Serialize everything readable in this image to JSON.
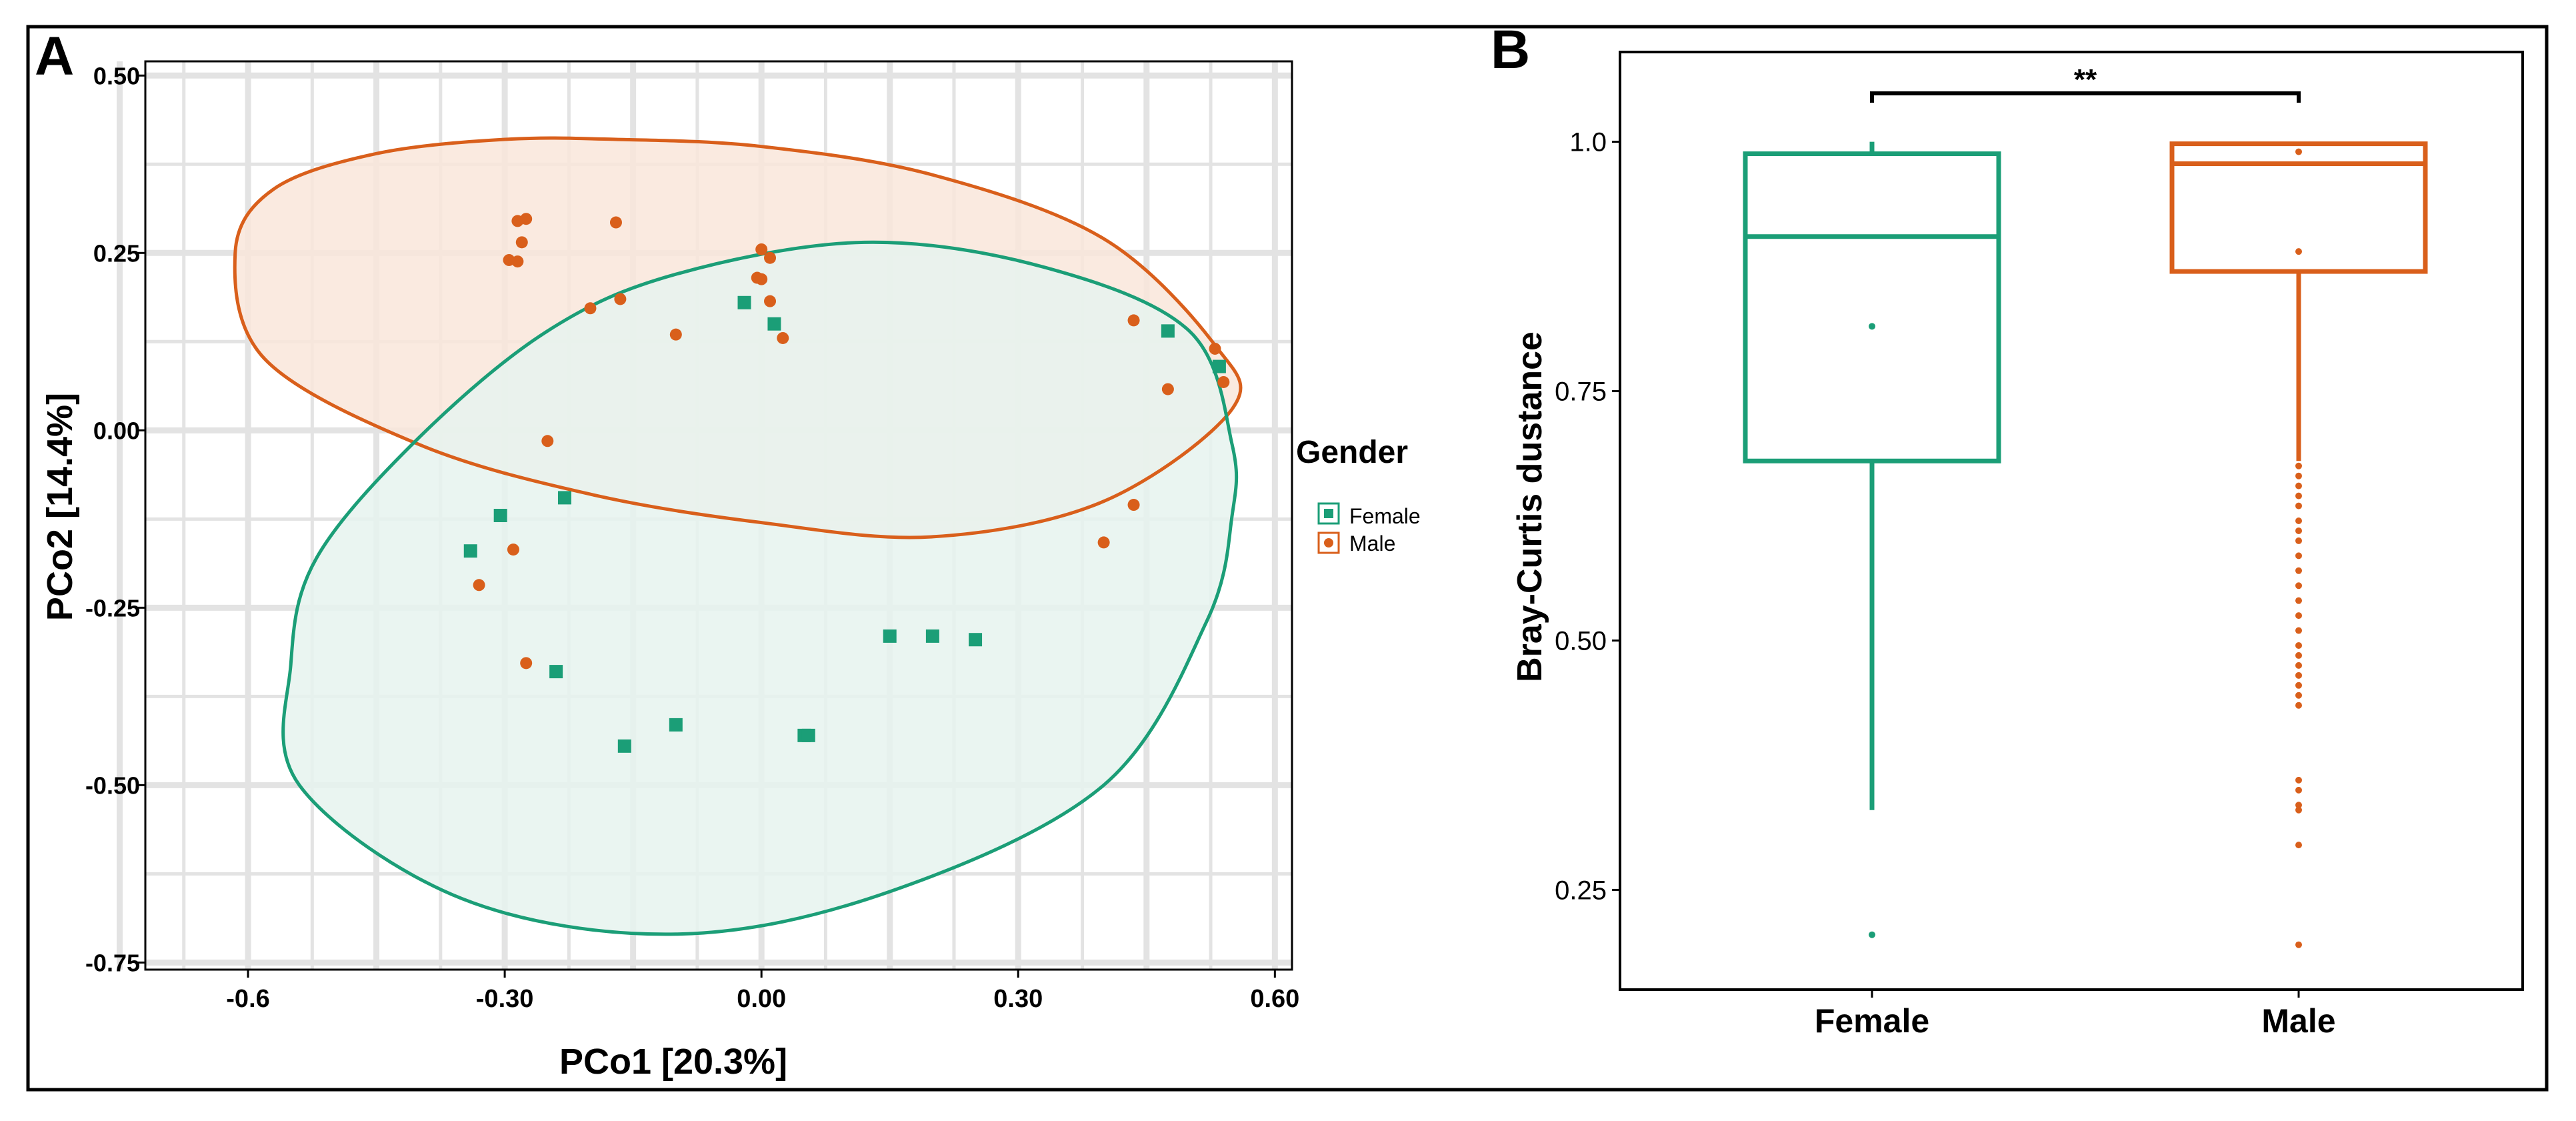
{
  "colors": {
    "female": "#1b9e77",
    "male": "#d95f1b",
    "female_fill": "#e6f3ee",
    "male_fill": "#f9e6da",
    "grid": "#e3e3e3",
    "axis": "#000000"
  },
  "chart_data": [
    {
      "panel": "A",
      "type": "scatter",
      "xlabel": "PCo1 [20.3%]",
      "ylabel": "PCo2 [14.4%]",
      "xlim": [
        -0.72,
        0.62
      ],
      "ylim": [
        -0.76,
        0.52
      ],
      "xticks": [
        -0.6,
        -0.3,
        0.0,
        0.3,
        0.6
      ],
      "xtick_labels": [
        "-0.6",
        "-0.30",
        "0.00",
        "0.30",
        "0.60"
      ],
      "yticks": [
        0.5,
        0.25,
        0.0,
        -0.25,
        -0.5,
        -0.75
      ],
      "ytick_labels": [
        "0.50",
        "0.25",
        "0.00",
        "-0.25",
        "-0.50",
        "-0.75"
      ],
      "legend": {
        "title": "Gender",
        "position": "right",
        "entries": [
          {
            "label": "Female",
            "marker": "square",
            "series": "female"
          },
          {
            "label": "Male",
            "marker": "circle",
            "series": "male"
          }
        ]
      },
      "ellipses": [
        {
          "series": "male",
          "points": [
            [
              -0.17,
              0.41
            ],
            [
              0.0,
              0.4
            ],
            [
              0.2,
              0.36
            ],
            [
              0.4,
              0.27
            ],
            [
              0.53,
              0.12
            ],
            [
              0.55,
              0.03
            ],
            [
              0.4,
              -0.1
            ],
            [
              0.2,
              -0.15
            ],
            [
              0.0,
              -0.13
            ],
            [
              -0.2,
              -0.09
            ],
            [
              -0.4,
              -0.02
            ],
            [
              -0.58,
              0.1
            ],
            [
              -0.615,
              0.25
            ],
            [
              -0.57,
              0.34
            ],
            [
              -0.45,
              0.39
            ],
            [
              -0.3,
              0.41
            ]
          ]
        },
        {
          "series": "female",
          "points": [
            [
              0.12,
              0.265
            ],
            [
              0.33,
              0.23
            ],
            [
              0.5,
              0.14
            ],
            [
              0.55,
              -0.02
            ],
            [
              0.55,
              -0.12
            ],
            [
              0.52,
              -0.27
            ],
            [
              0.4,
              -0.5
            ],
            [
              0.15,
              -0.65
            ],
            [
              -0.1,
              -0.71
            ],
            [
              -0.35,
              -0.66
            ],
            [
              -0.54,
              -0.5
            ],
            [
              -0.55,
              -0.33
            ],
            [
              -0.52,
              -0.18
            ],
            [
              -0.4,
              -0.01
            ],
            [
              -0.25,
              0.14
            ],
            [
              -0.1,
              0.22
            ]
          ]
        }
      ],
      "series": [
        {
          "name": "Female",
          "key": "female",
          "marker": "square",
          "x": [
            -0.02,
            0.015,
            0.475,
            0.535,
            -0.23,
            -0.305,
            -0.34,
            -0.24,
            -0.16,
            -0.1,
            0.05,
            0.055,
            0.15,
            0.2,
            0.25
          ],
          "y": [
            0.18,
            0.15,
            0.14,
            0.09,
            -0.095,
            -0.12,
            -0.17,
            -0.34,
            -0.445,
            -0.415,
            -0.43,
            -0.43,
            -0.29,
            -0.29,
            -0.295
          ]
        },
        {
          "name": "Male",
          "key": "male",
          "marker": "circle",
          "x": [
            -0.285,
            -0.275,
            -0.28,
            -0.295,
            -0.285,
            -0.17,
            -0.2,
            -0.165,
            -0.1,
            -0.005,
            0.0,
            0.01,
            0.0,
            0.01,
            0.025,
            0.435,
            0.53,
            0.54,
            0.475,
            -0.25,
            -0.29,
            -0.33,
            -0.275,
            0.435,
            0.4
          ],
          "y": [
            0.295,
            0.298,
            0.265,
            0.24,
            0.238,
            0.293,
            0.172,
            0.185,
            0.135,
            0.215,
            0.213,
            0.243,
            0.255,
            0.182,
            0.13,
            0.155,
            0.115,
            0.068,
            0.058,
            -0.015,
            -0.168,
            -0.218,
            -0.328,
            -0.105,
            -0.158
          ]
        }
      ]
    },
    {
      "panel": "B",
      "type": "box",
      "xlabel": "",
      "ylabel": "Bray-Curtis dustance",
      "categories": [
        "Female",
        "Male"
      ],
      "ylim": [
        0.15,
        1.09
      ],
      "yticks": [
        0.25,
        0.5,
        0.75,
        1.0
      ],
      "ytick_labels": [
        "0.25",
        "0.50",
        "0.75",
        "1.0"
      ],
      "significance": "**",
      "boxes": [
        {
          "name": "Female",
          "key": "female",
          "q1": 0.68,
          "median": 0.905,
          "q3": 0.988,
          "whisker_low": 0.33,
          "whisker_high": 1.0,
          "outliers": [
            0.815,
            0.205
          ]
        },
        {
          "name": "Male",
          "key": "male",
          "q1": 0.87,
          "median": 0.978,
          "q3": 0.998,
          "whisker_low": 0.68,
          "whisker_high": 1.0,
          "outliers": [
            0.89,
            0.675,
            0.665,
            0.655,
            0.645,
            0.635,
            0.62,
            0.61,
            0.6,
            0.585,
            0.57,
            0.555,
            0.54,
            0.525,
            0.51,
            0.495,
            0.485,
            0.475,
            0.465,
            0.455,
            0.445,
            0.435,
            0.36,
            0.35,
            0.335,
            0.33,
            0.295,
            0.195,
            0.99
          ]
        }
      ]
    }
  ],
  "panel_labels": {
    "a": "A",
    "b": "B"
  }
}
